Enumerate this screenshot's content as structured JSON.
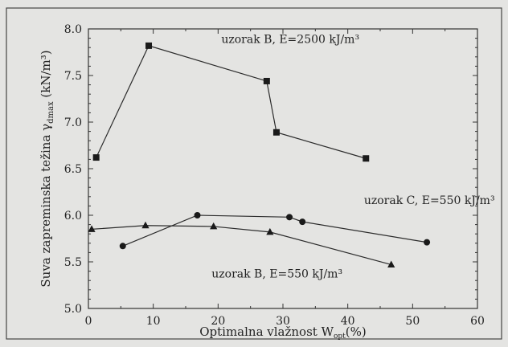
{
  "chart_data": {
    "type": "line",
    "xlabel_main": "Optimalna vlažnost W",
    "xlabel_sub": "opt",
    "xlabel_tail": "(%)",
    "ylabel_main": "Suva zapreminska težina γ",
    "ylabel_sub": "dmax",
    "ylabel_tail": " (kN/m³)",
    "xlim": [
      0,
      60
    ],
    "ylim": [
      5.0,
      8.0
    ],
    "x_ticks": [
      "0",
      "10",
      "20",
      "30",
      "40",
      "50",
      "60"
    ],
    "y_ticks": [
      "5.0",
      "5.5",
      "6.0",
      "6.5",
      "7.0",
      "7.5",
      "8.0"
    ],
    "series": [
      {
        "name": "uzorak B, E=2500 kJ/m³",
        "marker": "square",
        "x": [
          1.2,
          9.3,
          27.5,
          29.0,
          42.8
        ],
        "y": [
          6.62,
          7.82,
          7.44,
          6.89,
          6.61
        ]
      },
      {
        "name": "uzorak C, E=550 kJ/m³",
        "marker": "circle",
        "x": [
          5.3,
          16.8,
          31.0,
          33.0,
          52.2
        ],
        "y": [
          5.67,
          6.0,
          5.98,
          5.93,
          5.71
        ]
      },
      {
        "name": "uzorak B, E=550 kJ/m³",
        "marker": "triangle",
        "x": [
          0.5,
          8.8,
          19.3,
          28.0,
          46.7
        ],
        "y": [
          5.85,
          5.89,
          5.88,
          5.82,
          5.47
        ]
      }
    ],
    "annotations": [
      {
        "text": "uzorak B, E=2500 kJ/m³",
        "at_x": 20.5,
        "at_y": 7.85
      },
      {
        "text": "uzorak C, E=550 kJ/m³",
        "at_x": 42.5,
        "at_y": 6.12
      },
      {
        "text": "uzorak B, E=550 kJ/m³",
        "at_x": 19.0,
        "at_y": 5.33
      }
    ],
    "grid": false,
    "colors": {
      "line": "#2b2b2b",
      "marker": "#1a1a1a",
      "frame": "#333333",
      "background": "#e4e4e2"
    }
  }
}
